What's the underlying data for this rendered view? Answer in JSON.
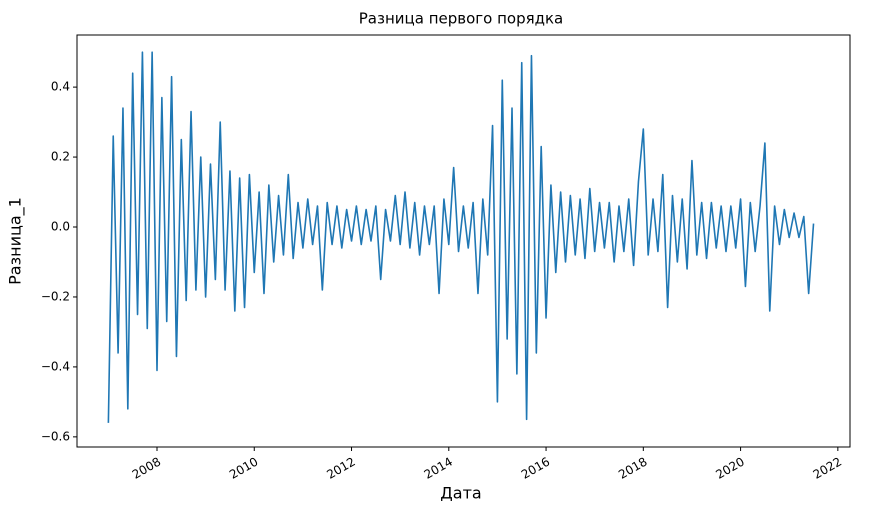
{
  "chart_data": {
    "type": "line",
    "title": "Разница первого порядка",
    "xlabel": "Дата",
    "ylabel": "Разница_1",
    "xlim": [
      2006.355,
      2022.25
    ],
    "xticks": [
      2008,
      2010,
      2012,
      2014,
      2016,
      2018,
      2020,
      2022
    ],
    "ylim": [
      -0.629,
      0.549
    ],
    "yticks": [
      {
        "value": -0.6,
        "label": "−0.6"
      },
      {
        "value": -0.4,
        "label": "−0.4"
      },
      {
        "value": -0.2,
        "label": "−0.2"
      },
      {
        "value": 0,
        "label": "0.0"
      },
      0.2,
      0.4
    ],
    "grid": false,
    "series": [
      {
        "color": "#1f77b4",
        "x": [
          2007.0,
          2007.1,
          2007.2,
          2007.3,
          2007.4,
          2007.5,
          2007.6,
          2007.7,
          2007.8,
          2007.9,
          2008.0,
          2008.1,
          2008.2,
          2008.3,
          2008.4,
          2008.5,
          2008.6,
          2008.7,
          2008.8,
          2008.9,
          2009.0,
          2009.1,
          2009.2,
          2009.3,
          2009.4,
          2009.5,
          2009.6,
          2009.7,
          2009.8,
          2009.9,
          2010.0,
          2010.1,
          2010.2,
          2010.3,
          2010.4,
          2010.5,
          2010.6,
          2010.7,
          2010.8,
          2010.9,
          2011.0,
          2011.1,
          2011.2,
          2011.3,
          2011.4,
          2011.5,
          2011.6,
          2011.7,
          2011.8,
          2011.9,
          2012.0,
          2012.1,
          2012.2,
          2012.3,
          2012.4,
          2012.5,
          2012.6,
          2012.7,
          2012.8,
          2012.9,
          2013.0,
          2013.1,
          2013.2,
          2013.3,
          2013.4,
          2013.5,
          2013.6,
          2013.7,
          2013.8,
          2013.9,
          2014.0,
          2014.1,
          2014.2,
          2014.3,
          2014.4,
          2014.5,
          2014.6,
          2014.7,
          2014.8,
          2014.9,
          2015.0,
          2015.1,
          2015.2,
          2015.3,
          2015.4,
          2015.5,
          2015.6,
          2015.7,
          2015.8,
          2015.9,
          2016.0,
          2016.1,
          2016.2,
          2016.3,
          2016.4,
          2016.5,
          2016.6,
          2016.7,
          2016.8,
          2016.9,
          2017.0,
          2017.1,
          2017.2,
          2017.3,
          2017.4,
          2017.5,
          2017.6,
          2017.7,
          2017.8,
          2017.9,
          2018.0,
          2018.1,
          2018.2,
          2018.3,
          2018.4,
          2018.5,
          2018.6,
          2018.7,
          2018.8,
          2018.9,
          2019.0,
          2019.1,
          2019.2,
          2019.3,
          2019.4,
          2019.5,
          2019.6,
          2019.7,
          2019.8,
          2019.9,
          2020.0,
          2020.1,
          2020.2,
          2020.3,
          2020.4,
          2020.5,
          2020.6,
          2020.7,
          2020.8,
          2020.9,
          2021.0,
          2021.1,
          2021.2,
          2021.3,
          2021.4,
          2021.5
        ],
        "values": [
          -0.56,
          0.26,
          -0.36,
          0.34,
          -0.52,
          0.44,
          -0.25,
          0.5,
          -0.29,
          0.5,
          -0.41,
          0.37,
          -0.27,
          0.43,
          -0.37,
          0.25,
          -0.21,
          0.33,
          -0.18,
          0.2,
          -0.2,
          0.18,
          -0.15,
          0.3,
          -0.18,
          0.16,
          -0.24,
          0.14,
          -0.23,
          0.15,
          -0.13,
          0.1,
          -0.19,
          0.12,
          -0.1,
          0.09,
          -0.08,
          0.15,
          -0.09,
          0.07,
          -0.06,
          0.08,
          -0.05,
          0.06,
          -0.18,
          0.07,
          -0.05,
          0.06,
          -0.06,
          0.05,
          -0.04,
          0.06,
          -0.05,
          0.05,
          -0.04,
          0.06,
          -0.15,
          0.05,
          -0.04,
          0.09,
          -0.05,
          0.1,
          -0.06,
          0.07,
          -0.08,
          0.06,
          -0.05,
          0.06,
          -0.19,
          0.08,
          -0.05,
          0.17,
          -0.07,
          0.06,
          -0.06,
          0.07,
          -0.19,
          0.08,
          -0.08,
          0.29,
          -0.5,
          0.42,
          -0.32,
          0.34,
          -0.42,
          0.47,
          -0.55,
          0.49,
          -0.36,
          0.23,
          -0.26,
          0.12,
          -0.13,
          0.1,
          -0.1,
          0.09,
          -0.08,
          0.08,
          -0.09,
          0.11,
          -0.07,
          0.07,
          -0.06,
          0.07,
          -0.1,
          0.06,
          -0.07,
          0.08,
          -0.11,
          0.13,
          0.28,
          -0.08,
          0.08,
          -0.07,
          0.15,
          -0.23,
          0.09,
          -0.1,
          0.08,
          -0.12,
          0.19,
          -0.08,
          0.07,
          -0.09,
          0.07,
          -0.06,
          0.06,
          -0.07,
          0.06,
          -0.06,
          0.08,
          -0.17,
          0.07,
          -0.07,
          0.06,
          0.24,
          -0.24,
          0.06,
          -0.05,
          0.05,
          -0.03,
          0.04,
          -0.03,
          0.03,
          -0.19,
          0.01
        ]
      }
    ]
  }
}
